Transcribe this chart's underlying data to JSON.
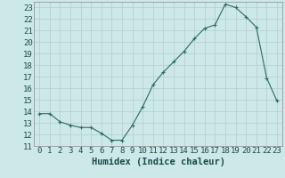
{
  "x": [
    0,
    1,
    2,
    3,
    4,
    5,
    6,
    7,
    8,
    9,
    10,
    11,
    12,
    13,
    14,
    15,
    16,
    17,
    18,
    19,
    20,
    21,
    22,
    23
  ],
  "y": [
    13.8,
    13.8,
    13.1,
    12.8,
    12.6,
    12.6,
    12.1,
    11.5,
    11.5,
    12.8,
    14.4,
    16.3,
    17.4,
    18.3,
    19.2,
    20.3,
    21.2,
    21.5,
    23.3,
    23.0,
    22.2,
    21.3,
    16.9,
    14.9
  ],
  "xlabel": "Humidex (Indice chaleur)",
  "ylim": [
    11,
    23.5
  ],
  "xlim": [
    -0.5,
    23.5
  ],
  "yticks": [
    11,
    12,
    13,
    14,
    15,
    16,
    17,
    18,
    19,
    20,
    21,
    22,
    23
  ],
  "xticks": [
    0,
    1,
    2,
    3,
    4,
    5,
    6,
    7,
    8,
    9,
    10,
    11,
    12,
    13,
    14,
    15,
    16,
    17,
    18,
    19,
    20,
    21,
    22,
    23
  ],
  "line_color": "#2d6b5e",
  "marker": "+",
  "bg_color": "#cce8e8",
  "grid_color": "#b0cccc",
  "xlabel_fontsize": 7.5,
  "tick_fontsize": 6.5
}
